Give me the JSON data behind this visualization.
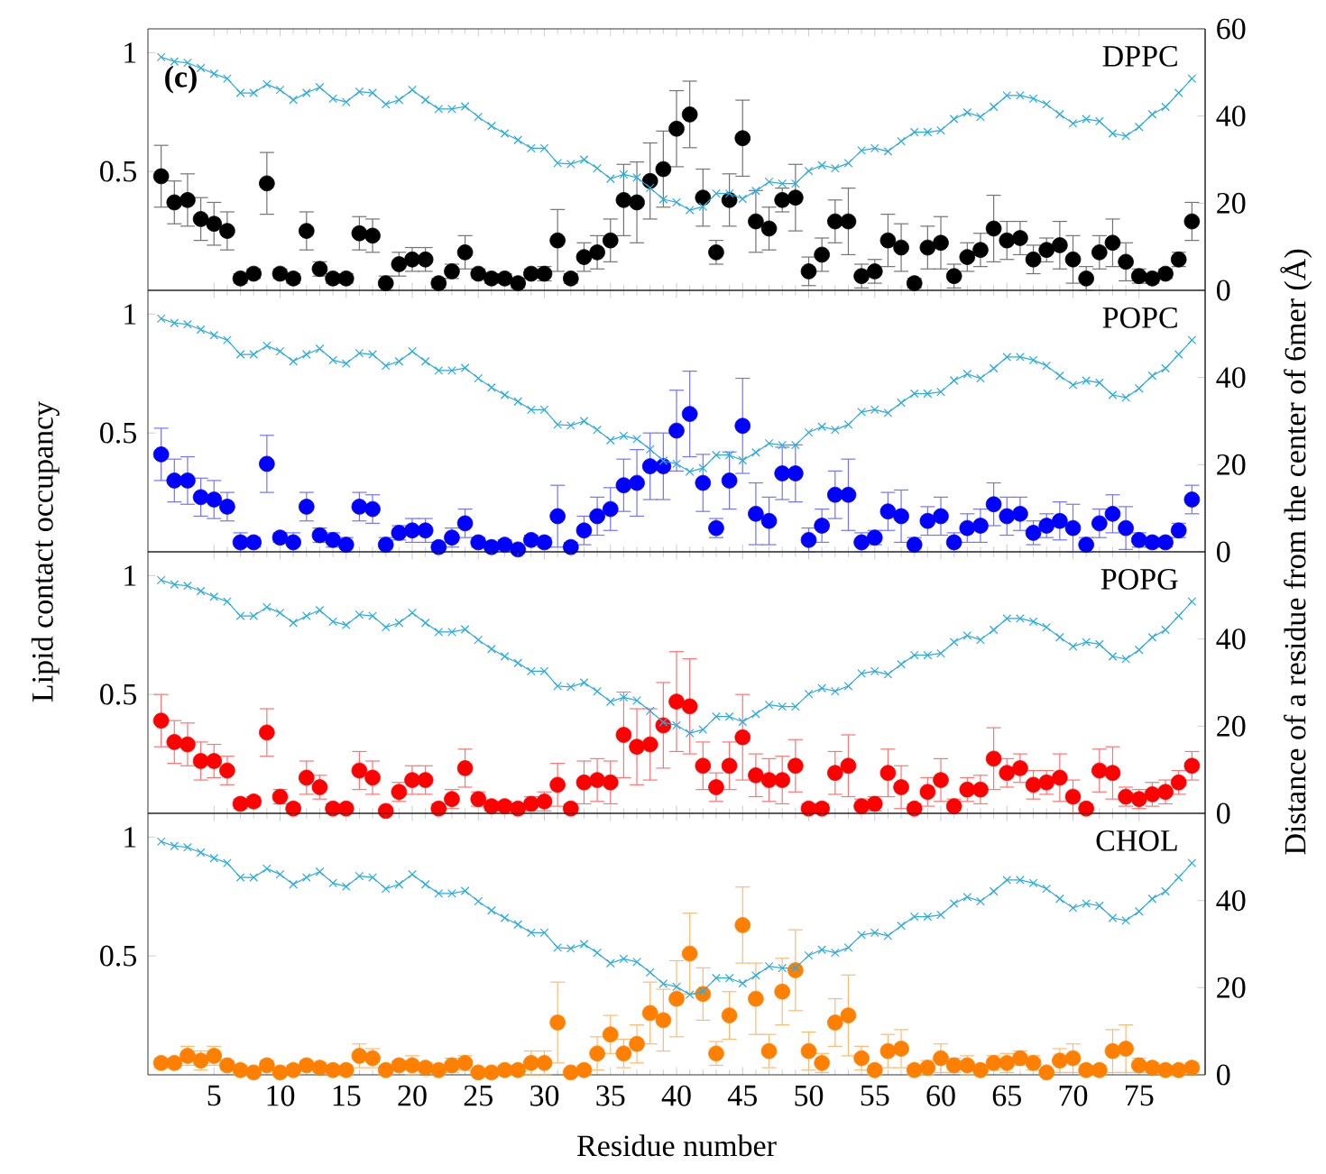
{
  "chart_data": [
    {
      "type": "scatter",
      "title": "DPPC",
      "annotations": [
        "(c)"
      ],
      "ylabel": "Lipid contact occupancy",
      "y2label": "Distance of a residue from the center of 6mer (Å)",
      "x": [
        1,
        2,
        3,
        4,
        5,
        6,
        7,
        8,
        9,
        10,
        11,
        12,
        13,
        14,
        15,
        16,
        17,
        18,
        19,
        20,
        21,
        22,
        23,
        24,
        25,
        26,
        27,
        28,
        29,
        30,
        31,
        32,
        33,
        34,
        35,
        36,
        37,
        38,
        39,
        40,
        41,
        42,
        43,
        44,
        45,
        46,
        47,
        48,
        49,
        50,
        51,
        52,
        53,
        54,
        55,
        56,
        57,
        58,
        59,
        60,
        61,
        62,
        63,
        64,
        65,
        66,
        67,
        68,
        69,
        70,
        71,
        72,
        73,
        74,
        75,
        76,
        77,
        78,
        79
      ],
      "xlim": [
        0,
        80
      ],
      "xticks": [
        5,
        10,
        15,
        20,
        25,
        30,
        35,
        40,
        45,
        50,
        55,
        60,
        65,
        70,
        75
      ],
      "ylim": [
        0,
        1.1
      ],
      "yticks": [
        0.5,
        1
      ],
      "y2lim": [
        0,
        60
      ],
      "y2ticks": [
        0,
        20,
        40,
        60
      ],
      "tick_labels": "y",
      "series": [
        {
          "type": "scatter",
          "color": "#000000",
          "marker": "circle",
          "values": [
            0.48,
            0.37,
            0.38,
            0.3,
            0.28,
            0.25,
            0.05,
            0.07,
            0.45,
            0.07,
            0.05,
            0.25,
            0.09,
            0.05,
            0.05,
            0.24,
            0.23,
            0.03,
            0.11,
            0.13,
            0.13,
            0.03,
            0.08,
            0.16,
            0.07,
            0.05,
            0.05,
            0.03,
            0.07,
            0.07,
            0.21,
            0.05,
            0.14,
            0.16,
            0.21,
            0.38,
            0.37,
            0.46,
            0.51,
            0.68,
            0.74,
            0.39,
            0.16,
            0.38,
            0.64,
            0.29,
            0.26,
            0.38,
            0.39,
            0.08,
            0.15,
            0.29,
            0.29,
            0.06,
            0.08,
            0.21,
            0.18,
            0.03,
            0.18,
            0.2,
            0.06,
            0.14,
            0.17,
            0.26,
            0.21,
            0.22,
            0.13,
            0.17,
            0.19,
            0.13,
            0.05,
            0.16,
            0.2,
            0.12,
            0.06,
            0.05,
            0.07,
            0.13,
            0.29
          ],
          "errors": [
            0.13,
            0.09,
            0.11,
            0.09,
            0.09,
            0.08,
            0.02,
            0.02,
            0.13,
            0.02,
            0.02,
            0.08,
            0.03,
            0.02,
            0.02,
            0.07,
            0.07,
            0.03,
            0.05,
            0.05,
            0.05,
            0.02,
            0.03,
            0.07,
            0.02,
            0.02,
            0.02,
            0.02,
            0.02,
            0.03,
            0.13,
            0.02,
            0.06,
            0.07,
            0.09,
            0.15,
            0.17,
            0.16,
            0.16,
            0.16,
            0.14,
            0.12,
            0.05,
            0.11,
            0.16,
            0.13,
            0.09,
            0.05,
            0.14,
            0.06,
            0.07,
            0.09,
            0.14,
            0.05,
            0.05,
            0.11,
            0.1,
            0.02,
            0.09,
            0.11,
            0.05,
            0.06,
            0.07,
            0.14,
            0.08,
            0.07,
            0.06,
            0.05,
            0.1,
            0.1,
            0.05,
            0.07,
            0.1,
            0.08,
            0.03,
            0.02,
            0.02,
            0.03,
            0.08
          ]
        },
        {
          "type": "line",
          "axis": "y2",
          "color": "#29abe2",
          "marker": "cross",
          "values": [
            53.5,
            52.5,
            52.2,
            51,
            49.7,
            48.6,
            45.3,
            45.3,
            47.3,
            46,
            43.7,
            45.3,
            46.6,
            44,
            43.2,
            45.6,
            45.3,
            42.7,
            43.7,
            46,
            43.7,
            41.6,
            41.6,
            42.2,
            39.8,
            37.7,
            36,
            34.5,
            32.6,
            32.6,
            29.2,
            29,
            30,
            28,
            25.6,
            26.6,
            25.9,
            23.5,
            20.9,
            20.2,
            18.4,
            19.2,
            22.2,
            22.2,
            21,
            22.8,
            24.9,
            24.5,
            24.5,
            27.4,
            28.7,
            28,
            29.2,
            32.1,
            32.6,
            31.9,
            34.2,
            36.3,
            36.3,
            36.7,
            39.3,
            40.8,
            39.8,
            42.1,
            44.7,
            44.7,
            44,
            42.7,
            40.4,
            38.3,
            39.3,
            38.8,
            36,
            35.4,
            37.5,
            40.4,
            42.1,
            45.3,
            48.6
          ]
        }
      ]
    },
    {
      "type": "scatter",
      "title": "POPC",
      "x": [
        1,
        2,
        3,
        4,
        5,
        6,
        7,
        8,
        9,
        10,
        11,
        12,
        13,
        14,
        15,
        16,
        17,
        18,
        19,
        20,
        21,
        22,
        23,
        24,
        25,
        26,
        27,
        28,
        29,
        30,
        31,
        32,
        33,
        34,
        35,
        36,
        37,
        38,
        39,
        40,
        41,
        42,
        43,
        44,
        45,
        46,
        47,
        48,
        49,
        50,
        51,
        52,
        53,
        54,
        55,
        56,
        57,
        58,
        59,
        60,
        61,
        62,
        63,
        64,
        65,
        66,
        67,
        68,
        69,
        70,
        71,
        72,
        73,
        74,
        75,
        76,
        77,
        78,
        79
      ],
      "xlim": [
        0,
        80
      ],
      "xticks": [
        5,
        10,
        15,
        20,
        25,
        30,
        35,
        40,
        45,
        50,
        55,
        60,
        65,
        70,
        75
      ],
      "ylim": [
        0,
        1.1
      ],
      "yticks": [
        0.5,
        1
      ],
      "y2lim": [
        0,
        60
      ],
      "y2ticks": [
        0,
        20,
        40
      ],
      "tick_labels": "y",
      "series": [
        {
          "type": "scatter",
          "color": "#0000ff",
          "marker": "circle",
          "values": [
            0.41,
            0.3,
            0.3,
            0.23,
            0.22,
            0.19,
            0.04,
            0.04,
            0.37,
            0.06,
            0.04,
            0.19,
            0.07,
            0.05,
            0.03,
            0.19,
            0.18,
            0.03,
            0.08,
            0.09,
            0.09,
            0.02,
            0.06,
            0.12,
            0.04,
            0.02,
            0.03,
            0.01,
            0.05,
            0.04,
            0.15,
            0.02,
            0.09,
            0.15,
            0.18,
            0.28,
            0.29,
            0.36,
            0.36,
            0.51,
            0.58,
            0.29,
            0.1,
            0.3,
            0.53,
            0.16,
            0.13,
            0.33,
            0.33,
            0.05,
            0.11,
            0.24,
            0.24,
            0.04,
            0.06,
            0.17,
            0.15,
            0.03,
            0.13,
            0.15,
            0.04,
            0.1,
            0.11,
            0.2,
            0.15,
            0.16,
            0.08,
            0.11,
            0.13,
            0.1,
            0.03,
            0.12,
            0.16,
            0.1,
            0.05,
            0.04,
            0.04,
            0.09,
            0.22
          ],
          "errors": [
            0.11,
            0.09,
            0.1,
            0.08,
            0.08,
            0.06,
            0.04,
            0.02,
            0.12,
            0.02,
            0.04,
            0.06,
            0.03,
            0.03,
            0.03,
            0.06,
            0.06,
            0.03,
            0.03,
            0.05,
            0.05,
            0.02,
            0.04,
            0.06,
            0.02,
            0.02,
            0.02,
            0.01,
            0.02,
            0.02,
            0.13,
            0.02,
            0.06,
            0.08,
            0.09,
            0.11,
            0.14,
            0.14,
            0.14,
            0.17,
            0.18,
            0.12,
            0.04,
            0.12,
            0.2,
            0.13,
            0.1,
            0.11,
            0.12,
            0.05,
            0.07,
            0.1,
            0.15,
            0.04,
            0.03,
            0.08,
            0.11,
            0.03,
            0.06,
            0.08,
            0.04,
            0.06,
            0.07,
            0.09,
            0.08,
            0.07,
            0.05,
            0.05,
            0.08,
            0.1,
            0.03,
            0.06,
            0.08,
            0.09,
            0.03,
            0.02,
            0.02,
            0.03,
            0.06
          ]
        },
        {
          "type": "line",
          "axis": "y2",
          "color": "#29abe2",
          "marker": "cross",
          "values": [
            53.5,
            52.5,
            52.2,
            51,
            49.7,
            48.6,
            45.3,
            45.3,
            47.3,
            46,
            43.7,
            45.3,
            46.6,
            44,
            43.2,
            45.6,
            45.3,
            42.7,
            43.7,
            46,
            43.7,
            41.6,
            41.6,
            42.2,
            39.8,
            37.7,
            36,
            34.5,
            32.6,
            32.6,
            29.2,
            29,
            30,
            28,
            25.6,
            26.6,
            25.9,
            23.5,
            20.9,
            20.2,
            18.4,
            19.2,
            22.2,
            22.2,
            21,
            22.8,
            24.9,
            24.5,
            24.5,
            27.4,
            28.7,
            28,
            29.2,
            32.1,
            32.6,
            31.9,
            34.2,
            36.3,
            36.3,
            36.7,
            39.3,
            40.8,
            39.8,
            42.1,
            44.7,
            44.7,
            44,
            42.7,
            40.4,
            38.3,
            39.3,
            38.8,
            36,
            35.4,
            37.5,
            40.4,
            42.1,
            45.3,
            48.6
          ]
        }
      ]
    },
    {
      "type": "scatter",
      "title": "POPG",
      "x": [
        1,
        2,
        3,
        4,
        5,
        6,
        7,
        8,
        9,
        10,
        11,
        12,
        13,
        14,
        15,
        16,
        17,
        18,
        19,
        20,
        21,
        22,
        23,
        24,
        25,
        26,
        27,
        28,
        29,
        30,
        31,
        32,
        33,
        34,
        35,
        36,
        37,
        38,
        39,
        40,
        41,
        42,
        43,
        44,
        45,
        46,
        47,
        48,
        49,
        50,
        51,
        52,
        53,
        54,
        55,
        56,
        57,
        58,
        59,
        60,
        61,
        62,
        63,
        64,
        65,
        66,
        67,
        68,
        69,
        70,
        71,
        72,
        73,
        74,
        75,
        76,
        77,
        78,
        79
      ],
      "xlim": [
        0,
        80
      ],
      "xticks": [
        5,
        10,
        15,
        20,
        25,
        30,
        35,
        40,
        45,
        50,
        55,
        60,
        65,
        70,
        75
      ],
      "ylim": [
        0,
        1.1
      ],
      "yticks": [
        0.5,
        1
      ],
      "y2lim": [
        0,
        60
      ],
      "y2ticks": [
        0,
        20,
        40
      ],
      "tick_labels": "y",
      "series": [
        {
          "type": "scatter",
          "color": "#ff0000",
          "marker": "circle",
          "values": [
            0.39,
            0.3,
            0.29,
            0.22,
            0.22,
            0.18,
            0.04,
            0.05,
            0.34,
            0.07,
            0.02,
            0.15,
            0.11,
            0.02,
            0.02,
            0.18,
            0.15,
            0.01,
            0.09,
            0.14,
            0.14,
            0.02,
            0.06,
            0.19,
            0.06,
            0.03,
            0.03,
            0.02,
            0.04,
            0.05,
            0.12,
            0.02,
            0.13,
            0.14,
            0.13,
            0.33,
            0.28,
            0.29,
            0.37,
            0.47,
            0.45,
            0.2,
            0.11,
            0.2,
            0.32,
            0.16,
            0.14,
            0.14,
            0.2,
            0.02,
            0.02,
            0.17,
            0.2,
            0.03,
            0.04,
            0.17,
            0.11,
            0.02,
            0.09,
            0.14,
            0.03,
            0.1,
            0.1,
            0.23,
            0.17,
            0.19,
            0.12,
            0.13,
            0.15,
            0.07,
            0.02,
            0.18,
            0.17,
            0.07,
            0.06,
            0.08,
            0.09,
            0.13,
            0.2
          ],
          "errors": [
            0.11,
            0.09,
            0.09,
            0.08,
            0.07,
            0.06,
            0.02,
            0.02,
            0.1,
            0.03,
            0.02,
            0.07,
            0.05,
            0.02,
            0.02,
            0.08,
            0.07,
            0.01,
            0.04,
            0.06,
            0.06,
            0.02,
            0.04,
            0.08,
            0.03,
            0.02,
            0.02,
            0.02,
            0.03,
            0.04,
            0.09,
            0.02,
            0.09,
            0.09,
            0.09,
            0.18,
            0.16,
            0.15,
            0.18,
            0.21,
            0.2,
            0.1,
            0.06,
            0.1,
            0.18,
            0.09,
            0.09,
            0.1,
            0.11,
            0.02,
            0.02,
            0.09,
            0.13,
            0.03,
            0.03,
            0.1,
            0.09,
            0.02,
            0.06,
            0.09,
            0.03,
            0.05,
            0.06,
            0.13,
            0.06,
            0.06,
            0.06,
            0.05,
            0.1,
            0.07,
            0.02,
            0.09,
            0.11,
            0.04,
            0.04,
            0.05,
            0.05,
            0.05,
            0.06
          ]
        },
        {
          "type": "line",
          "axis": "y2",
          "color": "#29abe2",
          "marker": "cross",
          "values": [
            53.5,
            52.5,
            52.2,
            51,
            49.7,
            48.6,
            45.3,
            45.3,
            47.3,
            46,
            43.7,
            45.3,
            46.6,
            44,
            43.2,
            45.6,
            45.3,
            42.7,
            43.7,
            46,
            43.7,
            41.6,
            41.6,
            42.2,
            39.8,
            37.7,
            36,
            34.5,
            32.6,
            32.6,
            29.2,
            29,
            30,
            28,
            25.6,
            26.6,
            25.9,
            23.5,
            20.9,
            20.2,
            18.4,
            19.2,
            22.2,
            22.2,
            21,
            22.8,
            24.9,
            24.5,
            24.5,
            27.4,
            28.7,
            28,
            29.2,
            32.1,
            32.6,
            31.9,
            34.2,
            36.3,
            36.3,
            36.7,
            39.3,
            40.8,
            39.8,
            42.1,
            44.7,
            44.7,
            44,
            42.7,
            40.4,
            38.3,
            39.3,
            38.8,
            36,
            35.4,
            37.5,
            40.4,
            42.1,
            45.3,
            48.6
          ]
        }
      ]
    },
    {
      "type": "scatter",
      "title": "CHOL",
      "xlabel": "Residue number",
      "x": [
        1,
        2,
        3,
        4,
        5,
        6,
        7,
        8,
        9,
        10,
        11,
        12,
        13,
        14,
        15,
        16,
        17,
        18,
        19,
        20,
        21,
        22,
        23,
        24,
        25,
        26,
        27,
        28,
        29,
        30,
        31,
        32,
        33,
        34,
        35,
        36,
        37,
        38,
        39,
        40,
        41,
        42,
        43,
        44,
        45,
        46,
        47,
        48,
        49,
        50,
        51,
        52,
        53,
        54,
        55,
        56,
        57,
        58,
        59,
        60,
        61,
        62,
        63,
        64,
        65,
        66,
        67,
        68,
        69,
        70,
        71,
        72,
        73,
        74,
        75,
        76,
        77,
        78,
        79
      ],
      "xlim": [
        0,
        80
      ],
      "xticks": [
        5,
        10,
        15,
        20,
        25,
        30,
        35,
        40,
        45,
        50,
        55,
        60,
        65,
        70,
        75
      ],
      "ylim": [
        0,
        1.1
      ],
      "yticks": [
        0.5,
        1
      ],
      "y2lim": [
        0,
        60
      ],
      "y2ticks": [
        0,
        20,
        40
      ],
      "series": [
        {
          "type": "scatter",
          "color": "#ff8000",
          "marker": "circle",
          "values": [
            0.05,
            0.05,
            0.08,
            0.06,
            0.08,
            0.04,
            0.02,
            0.01,
            0.04,
            0.01,
            0.02,
            0.04,
            0.03,
            0.02,
            0.02,
            0.08,
            0.07,
            0.02,
            0.04,
            0.04,
            0.03,
            0.02,
            0.04,
            0.05,
            0.01,
            0.01,
            0.02,
            0.02,
            0.05,
            0.05,
            0.22,
            0.01,
            0.02,
            0.09,
            0.17,
            0.09,
            0.13,
            0.26,
            0.23,
            0.32,
            0.51,
            0.34,
            0.09,
            0.25,
            0.63,
            0.32,
            0.1,
            0.35,
            0.44,
            0.1,
            0.05,
            0.22,
            0.25,
            0.07,
            0.02,
            0.1,
            0.11,
            0.02,
            0.03,
            0.07,
            0.04,
            0.04,
            0.02,
            0.05,
            0.05,
            0.07,
            0.05,
            0.01,
            0.06,
            0.07,
            0.02,
            0.02,
            0.1,
            0.11,
            0.04,
            0.03,
            0.02,
            0.02,
            0.03
          ],
          "errors": [
            0.02,
            0.02,
            0.04,
            0.04,
            0.04,
            0.02,
            0.02,
            0.01,
            0.02,
            0.01,
            0.02,
            0.02,
            0.02,
            0.02,
            0.02,
            0.05,
            0.04,
            0.02,
            0.02,
            0.04,
            0.02,
            0.02,
            0.03,
            0.03,
            0.01,
            0.01,
            0.02,
            0.02,
            0.05,
            0.05,
            0.17,
            0.01,
            0.02,
            0.07,
            0.08,
            0.06,
            0.08,
            0.13,
            0.13,
            0.16,
            0.17,
            0.11,
            0.05,
            0.1,
            0.16,
            0.15,
            0.07,
            0.14,
            0.17,
            0.08,
            0.04,
            0.1,
            0.17,
            0.05,
            0.02,
            0.07,
            0.08,
            0.02,
            0.03,
            0.06,
            0.03,
            0.04,
            0.02,
            0.03,
            0.04,
            0.03,
            0.03,
            0.01,
            0.05,
            0.06,
            0.02,
            0.02,
            0.09,
            0.1,
            0.03,
            0.02,
            0.02,
            0.02,
            0.02
          ]
        },
        {
          "type": "line",
          "axis": "y2",
          "color": "#29abe2",
          "marker": "cross",
          "values": [
            53.5,
            52.5,
            52.2,
            51,
            49.7,
            48.6,
            45.3,
            45.3,
            47.3,
            46,
            43.7,
            45.3,
            46.6,
            44,
            43.2,
            45.6,
            45.3,
            42.7,
            43.7,
            46,
            43.7,
            41.6,
            41.6,
            42.2,
            39.8,
            37.7,
            36,
            34.5,
            32.6,
            32.6,
            29.2,
            29,
            30,
            28,
            25.6,
            26.6,
            25.9,
            23.5,
            20.9,
            20.2,
            18.4,
            19.2,
            22.2,
            22.2,
            21,
            22.8,
            24.9,
            24.5,
            24.5,
            27.4,
            28.7,
            28,
            29.2,
            32.1,
            32.6,
            31.9,
            34.2,
            36.3,
            36.3,
            36.7,
            39.3,
            40.8,
            39.8,
            42.1,
            44.7,
            44.7,
            44,
            42.7,
            40.4,
            38.3,
            39.3,
            38.8,
            36,
            35.4,
            37.5,
            40.4,
            42.1,
            45.3,
            48.6
          ]
        }
      ]
    }
  ]
}
